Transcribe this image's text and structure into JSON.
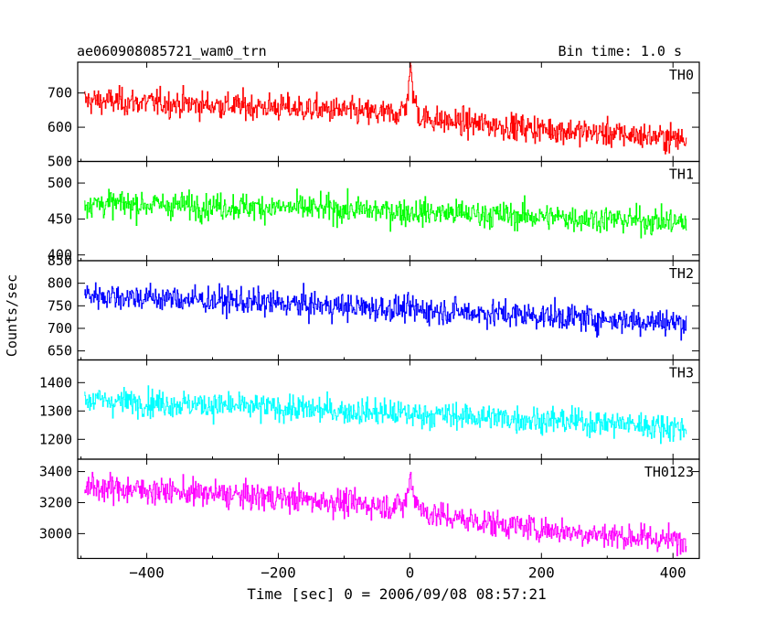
{
  "chart_data": {
    "type": "line",
    "title_left": "ae060908085721_wam0_trn",
    "title_right": "Bin time: 1.0 s",
    "xlabel": "Time [sec] 0 = 2006/09/08 08:57:21",
    "ylabel": "Counts/sec",
    "xlim": [
      -505,
      440
    ],
    "xticks": [
      -400,
      -200,
      0,
      200,
      400
    ],
    "grid": false,
    "panels": [
      {
        "name": "TH0",
        "color": "#ff0000",
        "ylim": [
          500,
          790
        ],
        "yticks": [
          500,
          600,
          700
        ],
        "ytick_labels": [
          "500",
          "600",
          "700"
        ],
        "x": [
          -495,
          -400,
          -300,
          -200,
          -100,
          -50,
          -20,
          -8,
          -3,
          0,
          5,
          15,
          50,
          100,
          200,
          300,
          420
        ],
        "y": [
          678,
          672,
          665,
          658,
          648,
          640,
          640,
          655,
          700,
          775,
          690,
          630,
          618,
          610,
          595,
          582,
          565
        ]
      },
      {
        "name": "TH1",
        "color": "#00ff00",
        "ylim": [
          392,
          530
        ],
        "yticks": [
          400,
          450,
          500
        ],
        "ytick_labels": [
          "400",
          "450",
          "500"
        ],
        "x": [
          -495,
          -400,
          -300,
          -200,
          -100,
          0,
          100,
          200,
          300,
          420
        ],
        "y": [
          472,
          470,
          468,
          466,
          463,
          460,
          457,
          453,
          450,
          445
        ]
      },
      {
        "name": "TH2",
        "color": "#0000ff",
        "ylim": [
          630,
          850
        ],
        "yticks": [
          650,
          700,
          750,
          800,
          850
        ],
        "ytick_labels": [
          "650",
          "700",
          "750",
          "800",
          "850"
        ],
        "x": [
          -495,
          -400,
          -300,
          -200,
          -100,
          0,
          100,
          200,
          300,
          420
        ],
        "y": [
          775,
          768,
          762,
          755,
          748,
          742,
          735,
          728,
          720,
          712
        ]
      },
      {
        "name": "TH3",
        "color": "#00ffff",
        "ylim": [
          1130,
          1480
        ],
        "yticks": [
          1200,
          1300,
          1400
        ],
        "ytick_labels": [
          "1200",
          "1300",
          "1400"
        ],
        "x": [
          -495,
          -400,
          -300,
          -200,
          -100,
          0,
          100,
          200,
          300,
          420
        ],
        "y": [
          1340,
          1330,
          1320,
          1310,
          1300,
          1290,
          1280,
          1268,
          1258,
          1240
        ]
      },
      {
        "name": "TH0123",
        "color": "#ff00ff",
        "ylim": [
          2840,
          3480
        ],
        "yticks": [
          3000,
          3200,
          3400
        ],
        "ytick_labels": [
          "3000",
          "3200",
          "3400"
        ],
        "x": [
          -495,
          -400,
          -300,
          -200,
          -100,
          -50,
          -10,
          -3,
          0,
          5,
          20,
          50,
          100,
          200,
          300,
          420
        ],
        "y": [
          3300,
          3280,
          3255,
          3230,
          3200,
          3180,
          3180,
          3260,
          3390,
          3250,
          3140,
          3110,
          3080,
          3030,
          2990,
          2950
        ]
      }
    ]
  }
}
